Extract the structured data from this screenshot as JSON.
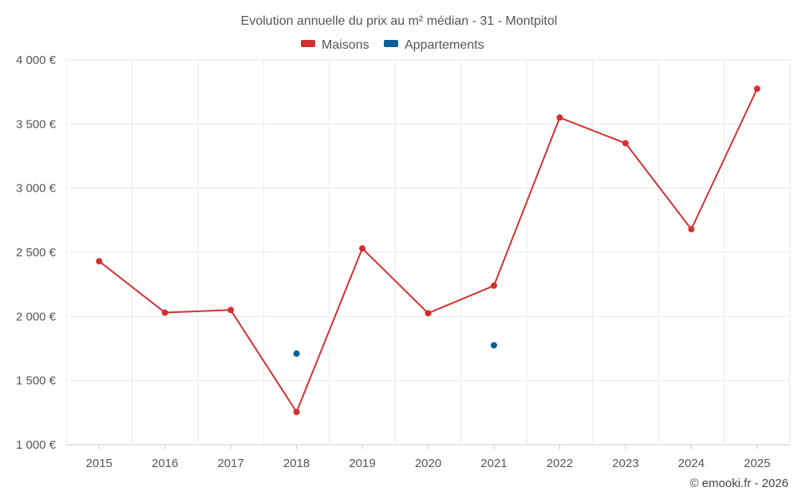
{
  "chart_data": {
    "type": "line",
    "title": "Evolution annuelle du prix au m² médian - 31 - Montpitol",
    "x": [
      "2015",
      "2016",
      "2017",
      "2018",
      "2019",
      "2020",
      "2021",
      "2022",
      "2023",
      "2024",
      "2025"
    ],
    "yticks": [
      "1 000 €",
      "1 500 €",
      "2 000 €",
      "2 500 €",
      "3 000 €",
      "3 500 €",
      "4 000 €"
    ],
    "ytick_values": [
      1000,
      1500,
      2000,
      2500,
      3000,
      3500,
      4000
    ],
    "ylim": [
      1000,
      4000
    ],
    "grid": true,
    "legend_position": "top-center",
    "series": [
      {
        "name": "Maisons",
        "color": "#d32f2f",
        "line": true,
        "values": [
          2430,
          2030,
          2050,
          1255,
          2530,
          2025,
          2240,
          3550,
          3350,
          2680,
          3775
        ]
      },
      {
        "name": "Appartements",
        "color": "#0a5f96",
        "line": false,
        "values": [
          null,
          null,
          null,
          1710,
          null,
          null,
          1775,
          null,
          null,
          null,
          null
        ]
      }
    ],
    "credit": "© emooki.fr - 2026"
  }
}
